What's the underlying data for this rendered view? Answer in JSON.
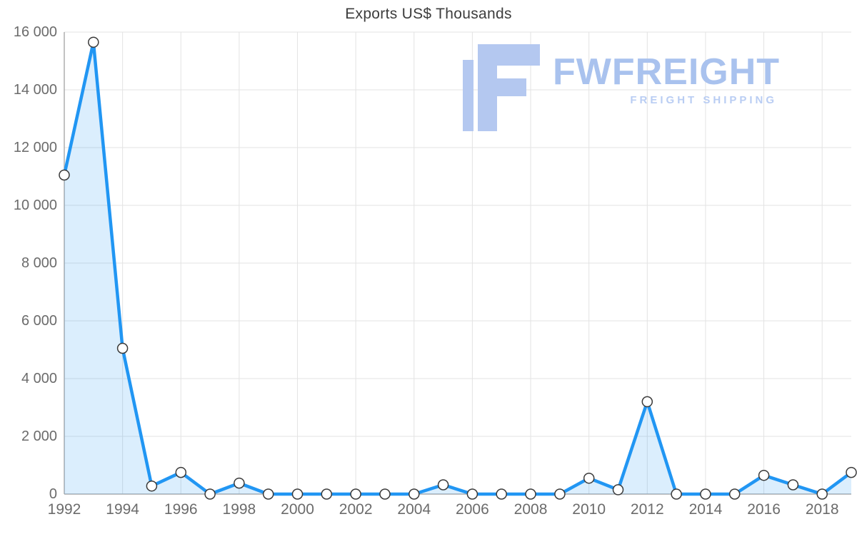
{
  "title": "Exports US$ Thousands",
  "watermark": {
    "brand": "FWFREIGHT",
    "tagline": "FREIGHT SHIPPING",
    "icon_color": "#b4c8f0",
    "brand_color": "#a9c2ee",
    "tagline_color": "#b9cdf3"
  },
  "chart_data": {
    "type": "area",
    "title": "Exports US$ Thousands",
    "xlabel": "",
    "ylabel": "",
    "x": [
      1992,
      1993,
      1994,
      1995,
      1996,
      1997,
      1998,
      1999,
      2000,
      2001,
      2002,
      2003,
      2004,
      2005,
      2006,
      2007,
      2008,
      2009,
      2010,
      2011,
      2012,
      2013,
      2014,
      2015,
      2016,
      2017,
      2018,
      2019
    ],
    "values": [
      11050,
      15650,
      5050,
      280,
      750,
      0,
      380,
      0,
      0,
      0,
      0,
      0,
      0,
      320,
      0,
      0,
      0,
      0,
      550,
      150,
      3200,
      0,
      0,
      0,
      650,
      320,
      0,
      750
    ],
    "xticks": [
      1992,
      1994,
      1996,
      1998,
      2000,
      2002,
      2004,
      2006,
      2008,
      2010,
      2012,
      2014,
      2016,
      2018
    ],
    "yticks": [
      0,
      2000,
      4000,
      6000,
      8000,
      10000,
      12000,
      14000,
      16000
    ],
    "ylim": [
      0,
      16000
    ],
    "grid": true,
    "legend": "none",
    "line_color": "#2196f3",
    "fill_color": "rgba(33,150,243,0.16)",
    "marker_fill": "#ffffff",
    "marker_stroke": "#3a3a3a",
    "grid_color": "#e3e3e3",
    "axis_color": "#adadad",
    "tick_color": "#6b6b6b"
  }
}
